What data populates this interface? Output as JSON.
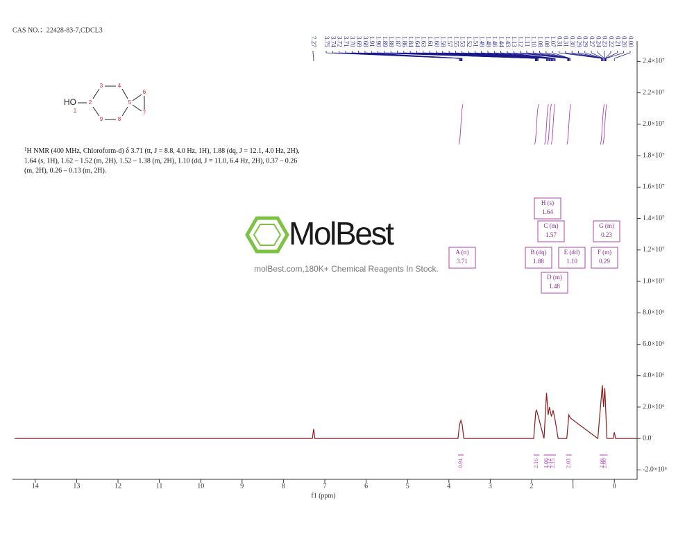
{
  "chart_data": {
    "type": "line",
    "title": "CAS NO.：22428-83-7,CDCL3",
    "xlabel": "f1 (ppm)",
    "xlim": [
      14.55,
      -0.55
    ],
    "xticks": [
      14,
      13,
      12,
      11,
      10,
      9,
      8,
      7,
      6,
      5,
      4,
      3,
      2,
      1,
      0
    ],
    "ylim": [
      -2600000,
      25300000
    ],
    "yticks": [
      {
        "value": -2000000,
        "label": "-2.0×10⁶"
      },
      {
        "value": 0,
        "label": "0.0"
      },
      {
        "value": 2000000,
        "label": "2.0×10⁶"
      },
      {
        "value": 4000000,
        "label": "4.0×10⁶"
      },
      {
        "value": 6000000,
        "label": "6.0×10⁶"
      },
      {
        "value": 8000000,
        "label": "8.0×10⁶"
      },
      {
        "value": 10000000,
        "label": "1.0×10⁷"
      },
      {
        "value": 12000000,
        "label": "1.2×10⁷"
      },
      {
        "value": 14000000,
        "label": "1.4×10⁷"
      },
      {
        "value": 16000000,
        "label": "1.6×10⁷"
      },
      {
        "value": 18000000,
        "label": "1.8×10⁷"
      },
      {
        "value": 20000000,
        "label": "2.0×10⁷"
      },
      {
        "value": 22000000,
        "label": "2.2×10⁷"
      },
      {
        "value": 24000000,
        "label": "2.4×10⁷"
      }
    ],
    "color": "#8b1a1a",
    "x": [
      14.5,
      7.3,
      7.27,
      7.24,
      3.78,
      3.74,
      3.71,
      3.68,
      3.64,
      1.95,
      1.9,
      1.88,
      1.86,
      1.7,
      1.64,
      1.6,
      1.57,
      1.52,
      1.48,
      1.44,
      1.36,
      1.15,
      1.1,
      1.06,
      0.4,
      0.29,
      0.26,
      0.23,
      0.18,
      0.03,
      0.0,
      -0.03,
      -0.55
    ],
    "values": [
      0,
      0,
      600000,
      0,
      0,
      900000,
      1150000,
      900000,
      0,
      0,
      1700000,
      1800000,
      1600000,
      0,
      2900000,
      1500000,
      2000000,
      1400000,
      1800000,
      1300000,
      0,
      0,
      1500000,
      1300000,
      0,
      3400000,
      2000000,
      3200000,
      0,
      0,
      400000,
      0,
      0
    ],
    "peak_labels": [
      "7.27",
      "3.75",
      "3.74",
      "3.72",
      "3.71",
      "3.70",
      "3.69",
      "3.68",
      "1.91",
      "1.90",
      "1.89",
      "1.88",
      "1.87",
      "1.86",
      "1.84",
      "1.64",
      "1.63",
      "1.61",
      "1.60",
      "1.58",
      "1.57",
      "1.55",
      "1.53",
      "1.52",
      "1.51",
      "1.49",
      "1.48",
      "1.46",
      "1.44",
      "1.43",
      "1.13",
      "1.12",
      "1.11",
      "1.10",
      "1.08",
      "1.08",
      "1.07",
      "0.31",
      "0.31",
      "0.30",
      "0.29",
      "0.29",
      "0.27",
      "0.24",
      "0.23",
      "0.22",
      "0.21",
      "0.20",
      "0.00"
    ],
    "multiplets": [
      {
        "label": "A (tt)",
        "shift": "3.71",
        "integral": "0.94"
      },
      {
        "label": "B (dq)",
        "shift": "1.88",
        "integral": "2.16"
      },
      {
        "label": "H (s)",
        "shift": "1.64",
        "integral": "1.06"
      },
      {
        "label": "C (m)",
        "shift": "1.57",
        "integral": "2.12"
      },
      {
        "label": "D (m)",
        "shift": "1.48",
        "integral": "2.15"
      },
      {
        "label": "E (dd)",
        "shift": "1.10",
        "integral": "2.03"
      },
      {
        "label": "F (m)",
        "shift": "0.29",
        "integral": "2.09"
      },
      {
        "label": "G (m)",
        "shift": "0.23",
        "integral": "2.00"
      }
    ],
    "description": {
      "isotope": "1",
      "lines": [
        "H NMR (400 MHz, Chloroform-d) δ 3.71 (tt, J = 8.8, 4.0 Hz, 1H), 1.88 (dq, J = 12.1, 4.0 Hz, 2H),",
        "1.64 (s, 1H), 1.62 – 1.52 (m, 2H), 1.52 – 1.38 (m, 2H), 1.10 (dd, J = 11.0, 6.4 Hz, 2H), 0.37 – 0.26",
        "(m, 2H), 0.26 – 0.13 (m, 2H)."
      ]
    },
    "structure_labels": {
      "group": "HO",
      "atoms": [
        "1",
        "2",
        "3",
        "4",
        "5",
        "6",
        "7",
        "8",
        "9"
      ]
    },
    "watermark": {
      "logo": "MolBest",
      "tagline": "molBest.com,180K+ Chemical Reagents In Stock."
    }
  }
}
